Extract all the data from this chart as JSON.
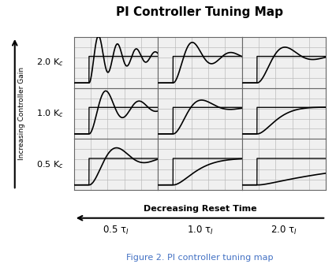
{
  "title": "PI Controller Tuning Map",
  "title_fontsize": 11,
  "row_labels": [
    "2.0 K$_c$",
    "1.0 K$_c$",
    "0.5 K$_c$"
  ],
  "col_labels": [
    "0.5 τ$_I$",
    "1.0 τ$_I$",
    "2.0 τ$_I$"
  ],
  "ylabel": "Increasing Controller Gain",
  "xlabel": "Decreasing Reset Time",
  "caption": "Figure 2. PI controller tuning map",
  "caption_color": "#4472C4",
  "caption_fontsize": 8,
  "row_label_fontsize": 8,
  "col_label_fontsize": 8.5,
  "axis_label_fontsize": 8,
  "grid_color": "#bbbbbb",
  "line_color": "#000000",
  "line_width": 1.2,
  "bg_color": "#ffffff",
  "subplot_bg": "#f0f0f0",
  "curves": {
    "00": {
      "omega": 28,
      "zeta": 0.08
    },
    "01": {
      "omega": 14,
      "zeta": 0.2
    },
    "02": {
      "omega": 10,
      "zeta": 0.32
    },
    "10": {
      "omega": 16,
      "zeta": 0.15
    },
    "11": {
      "omega": 10,
      "zeta": 0.38
    },
    "12": {
      "omega": 7,
      "zeta": 0.85
    },
    "20": {
      "omega": 10,
      "zeta": 0.28
    },
    "21": {
      "omega": 6,
      "zeta": 0.9
    },
    "22": {
      "omega": 3,
      "zeta": 2.0
    }
  }
}
